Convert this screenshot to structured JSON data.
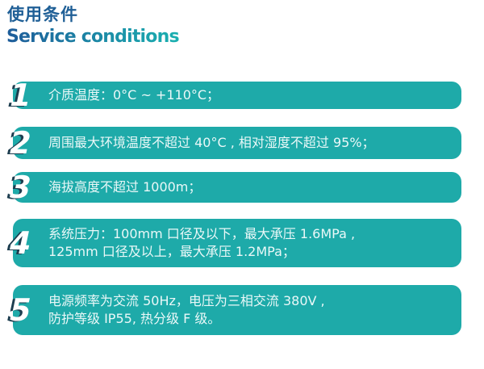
{
  "title_cn": "使用条件",
  "title_en": "Service conditions",
  "bar_color": "#1eaaa9",
  "items": [
    {
      "num": "1",
      "lines": [
        "介质温度：0°C ~ +110°C；"
      ]
    },
    {
      "num": "2",
      "lines": [
        "周围最大环境温度不超过 40°C , 相对湿度不超过 95%；"
      ]
    },
    {
      "num": "3",
      "lines": [
        "海拔高度不超过 1000m；"
      ]
    },
    {
      "num": "4",
      "lines": [
        "系统压力：100mm 口径及以下，最大承压 1.6MPa ,",
        "125mm 口径及以上，最大承压 1.2MPa；"
      ]
    },
    {
      "num": "5",
      "lines": [
        "电源频率为交流 50Hz，电压为三相交流 380V ,",
        "防护等级 IP55, 热分级 F 级。"
      ]
    }
  ]
}
